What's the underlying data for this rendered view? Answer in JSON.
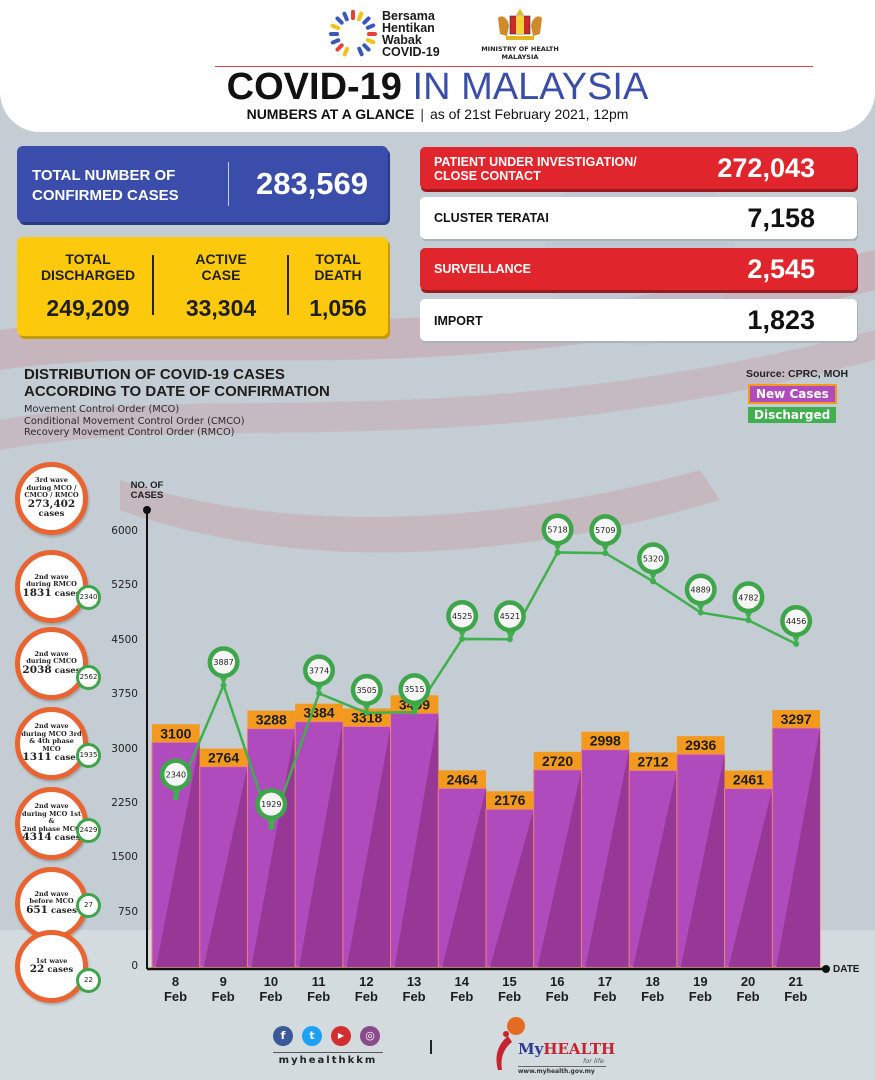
{
  "header": {
    "campaign_logo_text": [
      "Bersama",
      "Hentikan",
      "Wabak",
      "COVID-19"
    ],
    "ministry_line1": "MINISTRY OF HEALTH",
    "ministry_line2": "MALAYSIA",
    "title_bold": "COVID-19",
    "title_light": "IN MALAYSIA",
    "subtitle_bold": "NUMBERS AT A GLANCE",
    "subtitle_sep": "|",
    "subtitle_date": "as of 21st February 2021, 12pm"
  },
  "totals": {
    "confirmed_label": [
      "TOTAL NUMBER OF",
      "CONFIRMED CASES"
    ],
    "confirmed_value": "283,569",
    "discharged_label": [
      "TOTAL",
      "DISCHARGED"
    ],
    "discharged_value": "249,209",
    "active_label": [
      "ACTIVE",
      "CASE"
    ],
    "active_value": "33,304",
    "death_label": [
      "TOTAL",
      "DEATH"
    ],
    "death_value": "1,056"
  },
  "categories": [
    {
      "label": [
        "PATIENT UNDER INVESTIGATION/",
        "CLOSE CONTACT"
      ],
      "value": "272,043",
      "style": "red"
    },
    {
      "label": [
        "CLUSTER TERATAI"
      ],
      "value": "7,158",
      "style": "white"
    },
    {
      "label": [
        "SURVEILLANCE"
      ],
      "value": "2,545",
      "style": "red"
    },
    {
      "label": [
        "IMPORT"
      ],
      "value": "1,823",
      "style": "white"
    }
  ],
  "distribution": {
    "title": [
      "DISTRIBUTION OF COVID-19 CASES",
      "ACCORDING TO DATE OF CONFIRMATION"
    ],
    "notes": [
      "Movement Control Order (MCO)",
      "Conditional Movement Control Order (CMCO)",
      "Recovery Movement Control Order (RMCO)"
    ],
    "source": "Source: CPRC, MOH"
  },
  "waves": [
    {
      "lines": [
        "3rd wave",
        "during MCO /",
        "CMCO / RMCO"
      ],
      "count": "273,402",
      "unit": "cases",
      "discharged": null
    },
    {
      "lines": [
        "2nd wave",
        "during RMCO"
      ],
      "count": "1831",
      "unit": "cases",
      "discharged": "2340"
    },
    {
      "lines": [
        "2nd wave",
        "during CMCO"
      ],
      "count": "2038",
      "unit": "cases",
      "discharged": "2562"
    },
    {
      "lines": [
        "2nd wave",
        "during MCO 3rd",
        "& 4th phase MCO"
      ],
      "count": "1311",
      "unit": "cases",
      "discharged": "1935"
    },
    {
      "lines": [
        "2nd wave",
        "during MCO 1st &",
        "2nd phase MCO"
      ],
      "count": "4314",
      "unit": "cases",
      "discharged": "2429"
    },
    {
      "lines": [
        "2nd wave",
        "before MCO"
      ],
      "count": "651",
      "unit": "cases",
      "discharged": "27"
    },
    {
      "lines": [
        "1st wave"
      ],
      "count": "22",
      "unit": "cases",
      "discharged": "22"
    }
  ],
  "chart_data": {
    "type": "bar",
    "title": "DISTRIBUTION OF COVID-19 CASES ACCORDING TO DATE OF CONFIRMATION",
    "xlabel": "DATE",
    "ylabel": "NO. OF CASES",
    "ylim": [
      0,
      6000
    ],
    "yticks": [
      0,
      750,
      1500,
      2250,
      3000,
      3750,
      4500,
      5250,
      6000
    ],
    "categories": [
      [
        "8",
        "Feb"
      ],
      [
        "9",
        "Feb"
      ],
      [
        "10",
        "Feb"
      ],
      [
        "11",
        "Feb"
      ],
      [
        "12",
        "Feb"
      ],
      [
        "13",
        "Feb"
      ],
      [
        "14",
        "Feb"
      ],
      [
        "15",
        "Feb"
      ],
      [
        "16",
        "Feb"
      ],
      [
        "17",
        "Feb"
      ],
      [
        "18",
        "Feb"
      ],
      [
        "19",
        "Feb"
      ],
      [
        "20",
        "Feb"
      ],
      [
        "21",
        "Feb"
      ]
    ],
    "legend": [
      "New Cases",
      "Discharged"
    ],
    "legend_position": "top-right",
    "series": [
      {
        "name": "New Cases",
        "type": "bar",
        "color": "#b04bbd",
        "label_color": "#f39a1e",
        "values": [
          3100,
          2764,
          3288,
          3384,
          3318,
          3499,
          2464,
          2176,
          2720,
          2998,
          2712,
          2936,
          2461,
          3297
        ]
      },
      {
        "name": "Discharged",
        "type": "line",
        "color": "#3fb04d",
        "values": [
          2340,
          3887,
          1929,
          3774,
          3505,
          3515,
          4525,
          4521,
          5718,
          5709,
          5320,
          4889,
          4782,
          4456
        ]
      }
    ]
  },
  "footer": {
    "social_icons": [
      "facebook-icon",
      "twitter-icon",
      "youtube-icon",
      "instagram-icon"
    ],
    "social_glyphs": [
      "f",
      "t",
      "▶",
      "◎"
    ],
    "handle": "myhealthkkm",
    "separator": "|",
    "brand_my": "My",
    "brand_health": "HEALTH",
    "brand_tagline": "for life",
    "brand_url": "www.myhealth.gov.my"
  },
  "colors": {
    "blue": "#3b4dab",
    "yellow": "#fdc90d",
    "red": "#e0262c",
    "purple": "#b04bbd",
    "orange": "#f39a1e",
    "green": "#3fb04d",
    "wave_ring": "#ea6431"
  }
}
